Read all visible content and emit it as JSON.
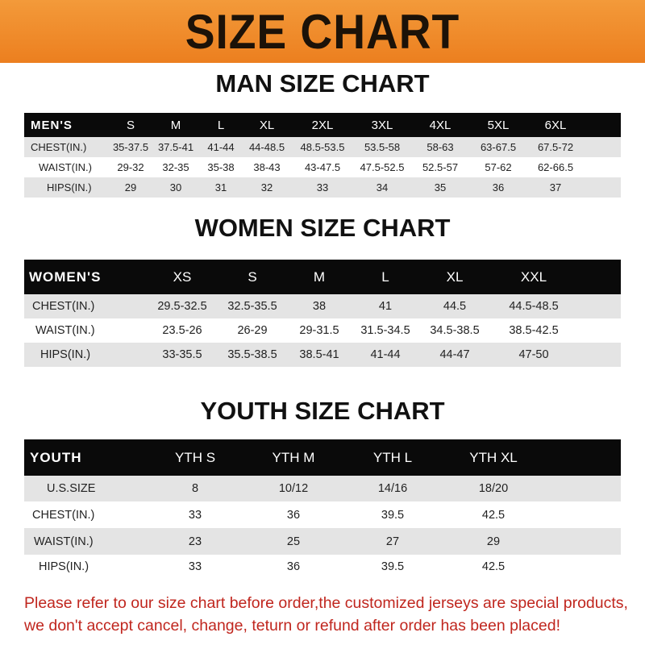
{
  "banner_title": "SIZE CHART",
  "colors": {
    "banner": "#ef8a2a",
    "header_row": "#0a0a0a",
    "stripe": "#e4e4e4",
    "note": "#c0261e"
  },
  "men": {
    "title": "MAN SIZE CHART",
    "header": [
      "MEN'S",
      "S",
      "M",
      "L",
      "XL",
      "2XL",
      "3XL",
      "4XL",
      "5XL",
      "6XL"
    ],
    "rows": [
      [
        "CHEST(IN.)",
        "35-37.5",
        "37.5-41",
        "41-44",
        "44-48.5",
        "48.5-53.5",
        "53.5-58",
        "58-63",
        "63-67.5",
        "67.5-72"
      ],
      [
        "WAIST(IN.)",
        "29-32",
        "32-35",
        "35-38",
        "38-43",
        "43-47.5",
        "47.5-52.5",
        "52.5-57",
        "57-62",
        "62-66.5"
      ],
      [
        "HIPS(IN.)",
        "29",
        "30",
        "31",
        "32",
        "33",
        "34",
        "35",
        "36",
        "37"
      ]
    ]
  },
  "women": {
    "title": "WOMEN SIZE CHART",
    "header": [
      "WOMEN'S",
      "XS",
      "S",
      "M",
      "L",
      "XL",
      "XXL"
    ],
    "rows": [
      [
        "CHEST(IN.)",
        "29.5-32.5",
        "32.5-35.5",
        "38",
        "41",
        "44.5",
        "44.5-48.5"
      ],
      [
        "WAIST(IN.)",
        "23.5-26",
        "26-29",
        "29-31.5",
        "31.5-34.5",
        "34.5-38.5",
        "38.5-42.5"
      ],
      [
        "HIPS(IN.)",
        "33-35.5",
        "35.5-38.5",
        "38.5-41",
        "41-44",
        "44-47",
        "47-50"
      ]
    ]
  },
  "youth": {
    "title": "YOUTH SIZE CHART",
    "header": [
      "YOUTH",
      "YTH S",
      "YTH M",
      "YTH L",
      "YTH XL"
    ],
    "rows": [
      [
        "U.S.SIZE",
        "8",
        "10/12",
        "14/16",
        "18/20"
      ],
      [
        "CHEST(IN.)",
        "33",
        "36",
        "39.5",
        "42.5"
      ],
      [
        "WAIST(IN.)",
        "23",
        "25",
        "27",
        "29"
      ],
      [
        "HIPS(IN.)",
        "33",
        "36",
        "39.5",
        "42.5"
      ]
    ]
  },
  "note": {
    "line1": "Please refer to our size chart before order,the customized jerseys are special products,",
    "line2": "we don't accept cancel, change, teturn or refund after order has been placed!"
  }
}
